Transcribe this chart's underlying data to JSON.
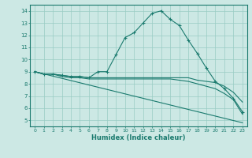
{
  "xlabel": "Humidex (Indice chaleur)",
  "bg_color": "#cce8e4",
  "grid_color": "#99ccc4",
  "line_color": "#1a7a6e",
  "xlim": [
    -0.5,
    23.5
  ],
  "ylim": [
    4.5,
    14.5
  ],
  "xticks": [
    0,
    1,
    2,
    3,
    4,
    5,
    6,
    7,
    8,
    9,
    10,
    11,
    12,
    13,
    14,
    15,
    16,
    17,
    18,
    19,
    20,
    21,
    22,
    23
  ],
  "yticks": [
    5,
    6,
    7,
    8,
    9,
    10,
    11,
    12,
    13,
    14
  ],
  "lines": [
    {
      "x": [
        0,
        1,
        2,
        3,
        4,
        5,
        6,
        7,
        8,
        9,
        10,
        11,
        12,
        13,
        14,
        15,
        16,
        17,
        18,
        19,
        20,
        21,
        22,
        23
      ],
      "y": [
        9.0,
        8.8,
        8.8,
        8.7,
        8.6,
        8.6,
        8.5,
        9.0,
        9.0,
        10.4,
        11.8,
        12.2,
        13.0,
        13.8,
        14.0,
        13.3,
        12.8,
        11.6,
        10.5,
        9.3,
        8.2,
        7.6,
        6.8,
        5.7
      ],
      "marker": "+"
    },
    {
      "x": [
        0,
        1,
        2,
        3,
        4,
        5,
        6,
        7,
        8,
        9,
        10,
        11,
        12,
        13,
        14,
        15,
        16,
        17,
        18,
        19,
        20,
        21,
        22,
        23
      ],
      "y": [
        9.0,
        8.8,
        8.8,
        8.7,
        8.6,
        8.6,
        8.5,
        8.5,
        8.5,
        8.5,
        8.5,
        8.5,
        8.5,
        8.5,
        8.5,
        8.5,
        8.5,
        8.5,
        8.3,
        8.2,
        8.1,
        7.8,
        7.3,
        6.5
      ],
      "marker": null
    },
    {
      "x": [
        0,
        1,
        2,
        3,
        4,
        5,
        6,
        7,
        8,
        9,
        10,
        11,
        12,
        13,
        14,
        15,
        16,
        17,
        18,
        19,
        20,
        21,
        22,
        23
      ],
      "y": [
        9.0,
        8.8,
        8.8,
        8.6,
        8.5,
        8.5,
        8.4,
        8.4,
        8.4,
        8.4,
        8.4,
        8.4,
        8.4,
        8.4,
        8.4,
        8.4,
        8.3,
        8.2,
        8.0,
        7.8,
        7.6,
        7.2,
        6.7,
        5.5
      ],
      "marker": null
    },
    {
      "x": [
        0,
        23
      ],
      "y": [
        9.0,
        4.8
      ],
      "marker": null
    }
  ]
}
